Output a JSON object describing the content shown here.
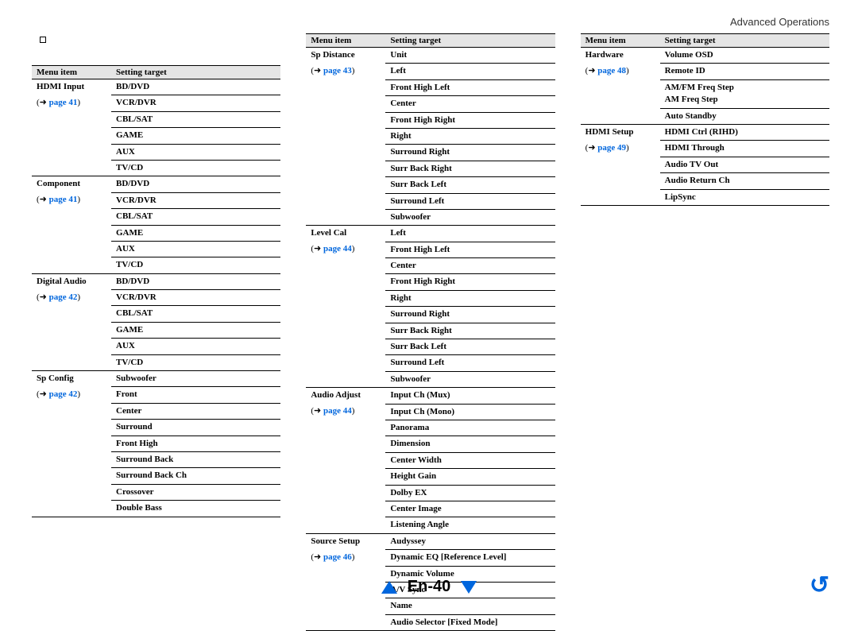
{
  "header": {
    "section": "Advanced Operations"
  },
  "tables": {
    "col1": {
      "headers": [
        "Menu item",
        "Setting target"
      ],
      "groups": [
        {
          "menu": "HDMI Input",
          "page": "page 41",
          "targets": [
            "BD/DVD",
            "VCR/DVR",
            "CBL/SAT",
            "GAME",
            "AUX",
            "TV/CD"
          ]
        },
        {
          "menu": "Component",
          "page": "page 41",
          "targets": [
            "BD/DVD",
            "VCR/DVR",
            "CBL/SAT",
            "GAME",
            "AUX",
            "TV/CD"
          ]
        },
        {
          "menu": "Digital Audio",
          "page": "page 42",
          "targets": [
            "BD/DVD",
            "VCR/DVR",
            "CBL/SAT",
            "GAME",
            "AUX",
            "TV/CD"
          ]
        },
        {
          "menu": "Sp Config",
          "page": "page 42",
          "targets": [
            "Subwoofer",
            "Front",
            "Center",
            "Surround",
            "Front High",
            "Surround Back",
            "Surround Back Ch",
            "Crossover",
            "Double Bass"
          ]
        }
      ]
    },
    "col2": {
      "headers": [
        "Menu item",
        "Setting target"
      ],
      "groups": [
        {
          "menu": "Sp Distance",
          "page": "page 43",
          "targets": [
            "Unit",
            "Left",
            "Front High Left",
            "Center",
            "Front High Right",
            "Right",
            "Surround Right",
            "Surr Back Right",
            "Surr Back Left",
            "Surround Left",
            "Subwoofer"
          ]
        },
        {
          "menu": "Level Cal",
          "page": "page 44",
          "targets": [
            "Left",
            "Front High Left",
            "Center",
            "Front High Right",
            "Right",
            "Surround Right",
            "Surr Back Right",
            "Surr Back Left",
            "Surround Left",
            "Subwoofer"
          ]
        },
        {
          "menu": "Audio Adjust",
          "page": "page 44",
          "targets": [
            "Input Ch (Mux)",
            "Input Ch (Mono)",
            "Panorama",
            "Dimension",
            "Center Width",
            "Height Gain",
            "Dolby EX",
            "Center Image",
            "Listening Angle"
          ]
        },
        {
          "menu": "Source Setup",
          "page": "page 46",
          "targets": [
            "Audyssey",
            "Dynamic EQ [Reference Level]",
            "Dynamic Volume",
            "A/V Sync",
            "Name",
            "Audio Selector [Fixed Mode]"
          ]
        }
      ]
    },
    "col3": {
      "headers": [
        "Menu item",
        "Setting target"
      ],
      "groups": [
        {
          "menu": "Hardware",
          "page": "page 48",
          "targets": [
            "Volume OSD",
            "Remote ID",
            "AM/FM Freq Step\nAM Freq Step",
            "Auto Standby"
          ]
        },
        {
          "menu": "HDMI Setup",
          "page": "page 49",
          "targets": [
            "HDMI Ctrl (RIHD)",
            "HDMI Through",
            "Audio TV Out",
            "Audio Return Ch",
            "LipSync"
          ]
        }
      ]
    }
  },
  "footer": {
    "page": "En-40"
  },
  "colors": {
    "link": "#0066dd",
    "header_bg": "#e5e5e5"
  }
}
